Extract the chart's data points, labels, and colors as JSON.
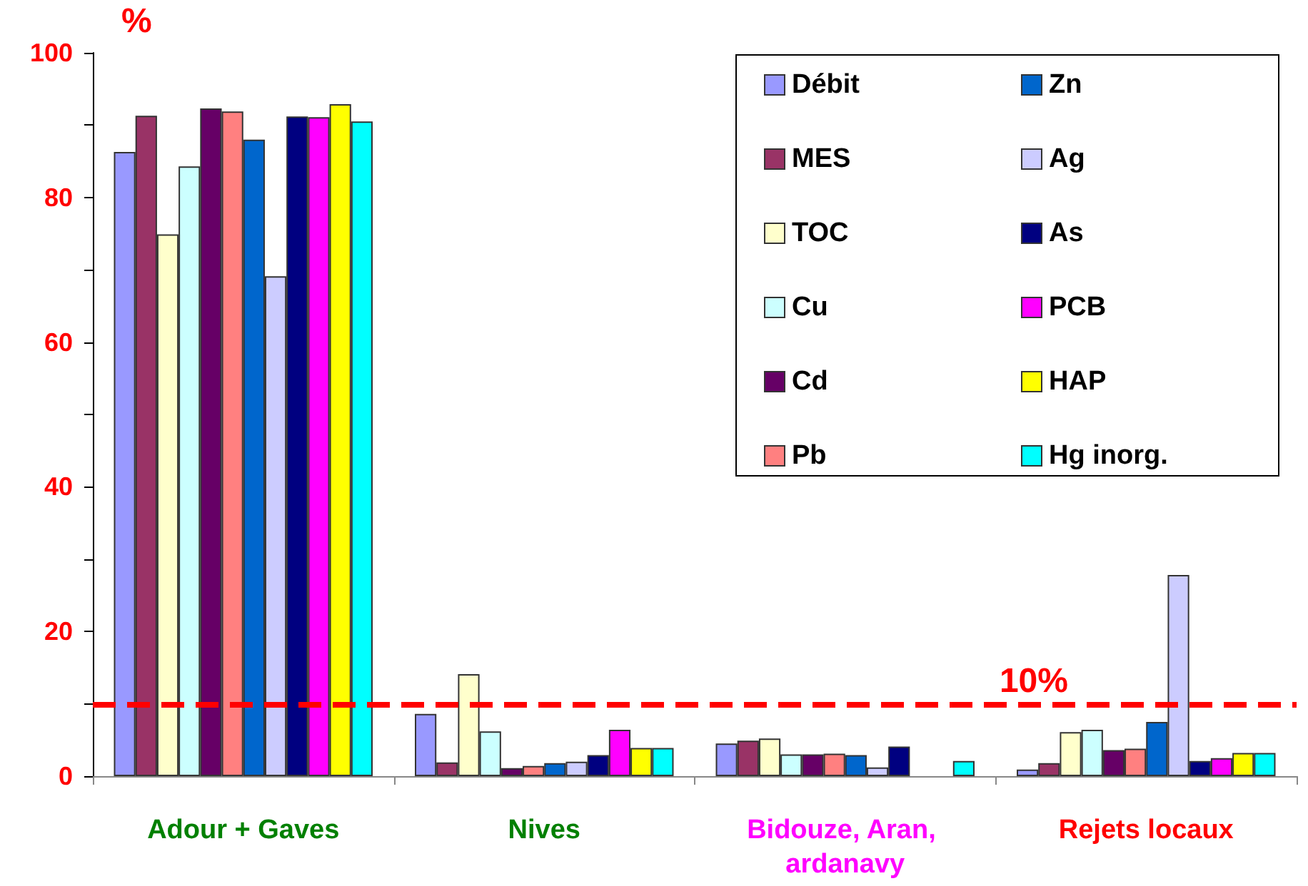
{
  "chart_data": {
    "type": "bar",
    "ylabel": "%",
    "categories": [
      "Adour + Gaves",
      "Nives",
      "Bidouze, Aran, ardanavy",
      "Rejets locaux"
    ],
    "series": [
      {
        "name": "Débit",
        "color": "#9999ff",
        "values": [
          86.3,
          8.6,
          4.5,
          0.9
        ]
      },
      {
        "name": "MES",
        "color": "#993366",
        "values": [
          91.3,
          1.9,
          4.9,
          1.8
        ]
      },
      {
        "name": "TOC",
        "color": "#ffffcc",
        "values": [
          74.9,
          14.1,
          5.2,
          6.1
        ]
      },
      {
        "name": "Cu",
        "color": "#ccffff",
        "values": [
          84.3,
          6.2,
          3.0,
          6.4
        ]
      },
      {
        "name": "Cd",
        "color": "#660066",
        "values": [
          92.3,
          1.1,
          3.0,
          3.6
        ]
      },
      {
        "name": "Pb",
        "color": "#ff8080",
        "values": [
          91.9,
          1.4,
          3.1,
          3.8
        ]
      },
      {
        "name": "Zn",
        "color": "#0066cc",
        "values": [
          88.0,
          1.8,
          2.9,
          7.5
        ]
      },
      {
        "name": "Ag",
        "color": "#ccccff",
        "values": [
          69.1,
          2.0,
          1.2,
          27.8
        ]
      },
      {
        "name": "As",
        "color": "#000080",
        "values": [
          91.2,
          2.9,
          4.1,
          2.1
        ]
      },
      {
        "name": "PCB",
        "color": "#ff00ff",
        "values": [
          91.1,
          6.4,
          null,
          2.5
        ]
      },
      {
        "name": "HAP",
        "color": "#ffff00",
        "values": [
          92.9,
          3.9,
          null,
          3.2
        ]
      },
      {
        "name": "Hg inorg.",
        "color": "#00ffff",
        "values": [
          90.5,
          3.9,
          2.1,
          3.2
        ]
      }
    ],
    "ylim": [
      0,
      100
    ],
    "yticks": [
      0,
      20,
      40,
      60,
      80,
      100
    ],
    "grid": false,
    "legend": "top right",
    "ref_lines": [
      {
        "axis": "y",
        "value": 10,
        "label": "10%",
        "color": "#ff0000",
        "line_style": "dashed"
      }
    ]
  }
}
